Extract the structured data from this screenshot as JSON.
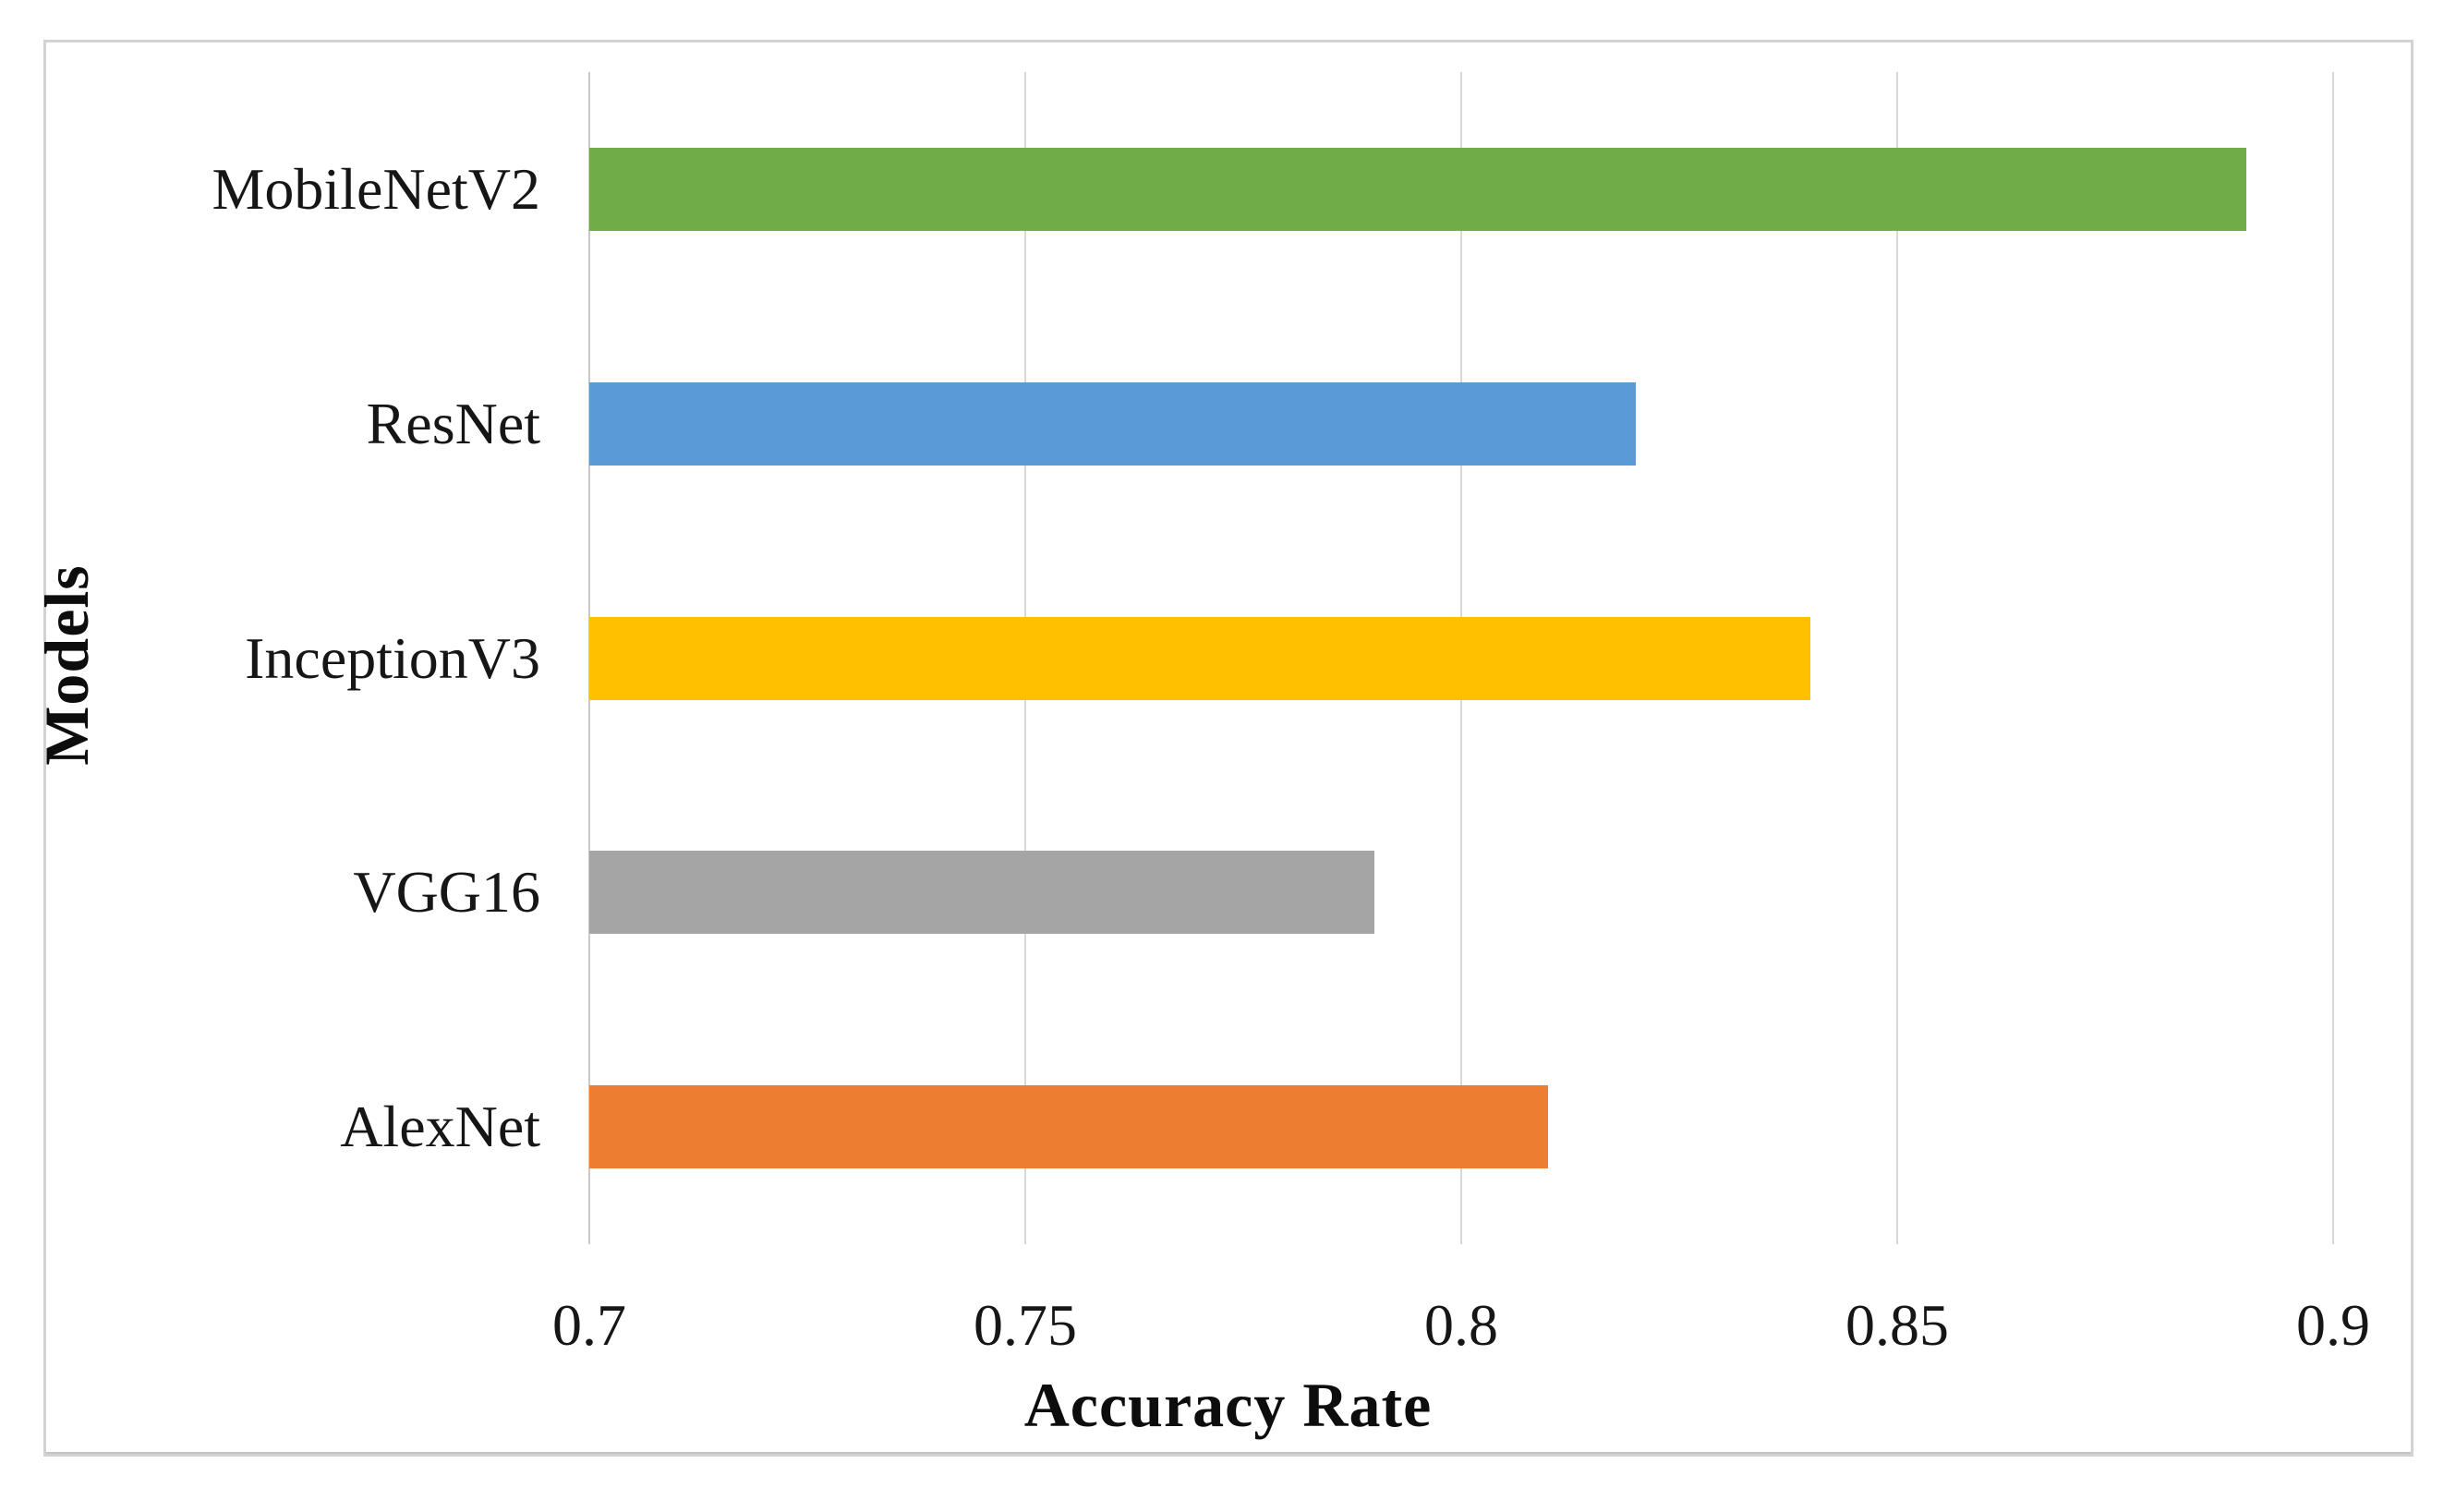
{
  "figure": {
    "kind": "scientific-figure",
    "background": "#ffffff",
    "border_color": "#d2d2d2"
  },
  "chart_data": {
    "type": "bar",
    "orientation": "horizontal",
    "title": "",
    "categories": [
      "MobileNetV2",
      "ResNet",
      "InceptionV3",
      "VGG16",
      "AlexNet"
    ],
    "values": [
      0.89,
      0.82,
      0.84,
      0.79,
      0.81
    ],
    "bar_colors": [
      "#70AD47",
      "#5B9BD5",
      "#FFC000",
      "#A5A5A5",
      "#ED7D31"
    ],
    "xlabel": "Accuracy Rate",
    "ylabel": "Models",
    "xlim": [
      0.7,
      0.9
    ],
    "x_ticks": [
      "0.7",
      "0.75",
      "0.8",
      "0.85",
      "0.9"
    ],
    "x_tick_values": [
      0.7,
      0.75,
      0.8,
      0.85,
      0.9
    ],
    "grid": "vertical-gridlines-on",
    "gridline_color": "#D7D7D7",
    "legend": "none",
    "text_color": "#161616"
  }
}
